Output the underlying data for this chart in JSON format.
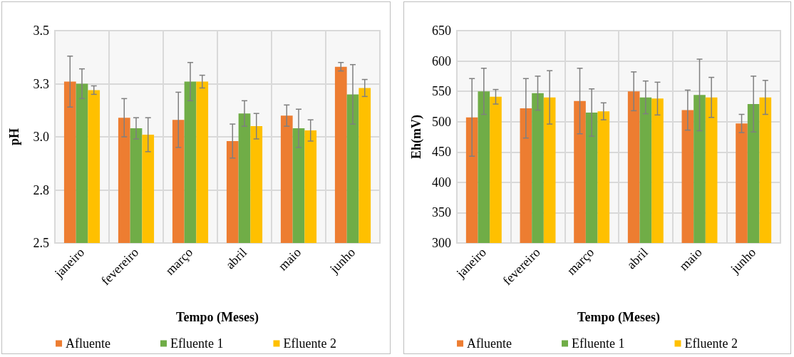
{
  "chart_data": [
    {
      "type": "bar",
      "xlabel": "Tempo (Meses)",
      "ylabel": "pH",
      "categories": [
        "janeiro",
        "fevereiro",
        "março",
        "abril",
        "maio",
        "junho"
      ],
      "series": [
        {
          "name": "Afluente",
          "color": "#ed7d31",
          "values": [
            3.26,
            3.09,
            3.08,
            2.98,
            3.1,
            3.33
          ],
          "errors": [
            0.12,
            0.09,
            0.13,
            0.08,
            0.05,
            0.02
          ]
        },
        {
          "name": "Efluente 1",
          "color": "#70ad47",
          "values": [
            3.25,
            3.04,
            3.26,
            3.11,
            3.04,
            3.2
          ],
          "errors": [
            0.07,
            0.05,
            0.09,
            0.06,
            0.09,
            0.14
          ]
        },
        {
          "name": "Efluente 2",
          "color": "#ffc000",
          "values": [
            3.22,
            3.01,
            3.26,
            3.05,
            3.03,
            3.23
          ],
          "errors": [
            0.02,
            0.08,
            0.03,
            0.06,
            0.05,
            0.04
          ]
        }
      ],
      "ylim": [
        2.5,
        3.5
      ],
      "yticks": [
        2.5,
        {
          "value": 2.75,
          "label": "2.8"
        },
        {
          "value": 3,
          "label": "3.0"
        },
        {
          "value": 3.25,
          "label": "3.3"
        },
        3.5
      ],
      "grid": true,
      "legend": "bottom"
    },
    {
      "type": "bar",
      "xlabel": "Tempo (Meses)",
      "ylabel": "Eh(mV)",
      "categories": [
        "janeiro",
        "fevereiro",
        "março",
        "abril",
        "maio",
        "junho"
      ],
      "series": [
        {
          "name": "Afluente",
          "color": "#ed7d31",
          "values": [
            507,
            522,
            534,
            550,
            519,
            497
          ],
          "errors": [
            64,
            49,
            54,
            32,
            33,
            15
          ]
        },
        {
          "name": "Efluente 1",
          "color": "#70ad47",
          "values": [
            550,
            547,
            515,
            540,
            544,
            529
          ],
          "errors": [
            38,
            28,
            39,
            27,
            59,
            46
          ]
        },
        {
          "name": "Efluente 2",
          "color": "#ffc000",
          "values": [
            541,
            540,
            517,
            538,
            540,
            540
          ],
          "errors": [
            12,
            44,
            14,
            27,
            33,
            28
          ]
        }
      ],
      "ylim": [
        300,
        650
      ],
      "yticks": [
        300,
        350,
        400,
        450,
        500,
        550,
        600,
        650
      ],
      "grid": true,
      "legend": "bottom"
    }
  ]
}
